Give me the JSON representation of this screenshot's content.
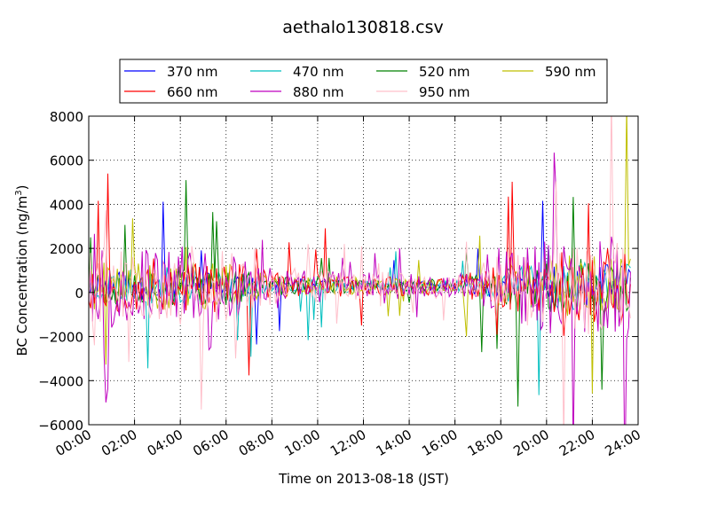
{
  "chart_data": {
    "type": "line",
    "title": "aethalo130818.csv",
    "xlabel": "Time on 2013-08-18 (JST)",
    "ylabel_main": "BC Concentration (ng/m",
    "ylabel_sup": "3",
    "ylabel_close": ")",
    "xlim": [
      "00:00",
      "24:00"
    ],
    "ylim": [
      -6000,
      8000
    ],
    "x_ticks": [
      "00:00",
      "02:00",
      "04:00",
      "06:00",
      "08:00",
      "10:00",
      "12:00",
      "14:00",
      "16:00",
      "18:00",
      "20:00",
      "22:00",
      "24:00"
    ],
    "y_ticks": [
      -6000,
      -4000,
      -2000,
      0,
      2000,
      4000,
      6000,
      8000
    ],
    "grid": true,
    "legend_position": "top",
    "series": [
      {
        "name": "370 nm",
        "color": "#0000ff",
        "amp": 550,
        "seed": 11,
        "spike": 0.03
      },
      {
        "name": "470 nm",
        "color": "#00bfbf",
        "amp": 650,
        "seed": 23,
        "spike": 0.04
      },
      {
        "name": "520 nm",
        "color": "#008000",
        "amp": 750,
        "seed": 37,
        "spike": 0.04
      },
      {
        "name": "590 nm",
        "color": "#bfbf00",
        "amp": 850,
        "seed": 41,
        "spike": 0.05
      },
      {
        "name": "660 nm",
        "color": "#ff0000",
        "amp": 1000,
        "seed": 53,
        "spike": 0.05
      },
      {
        "name": "880 nm",
        "color": "#bf00bf",
        "amp": 1350,
        "seed": 67,
        "spike": 0.07
      },
      {
        "name": "950 nm",
        "color": "#ffc0cb",
        "amp": 1400,
        "seed": 79,
        "spike": 0.07
      }
    ],
    "sample_step_minutes": 5,
    "activity_profile_hours": [
      0,
      2,
      4,
      6,
      8,
      10,
      12,
      14,
      16,
      18,
      20,
      22,
      24
    ],
    "activity_profile_factor": [
      1.3,
      1.2,
      1.35,
      1.2,
      0.6,
      0.55,
      0.45,
      0.45,
      0.4,
      1.1,
      1.6,
      1.7,
      1.9
    ]
  }
}
